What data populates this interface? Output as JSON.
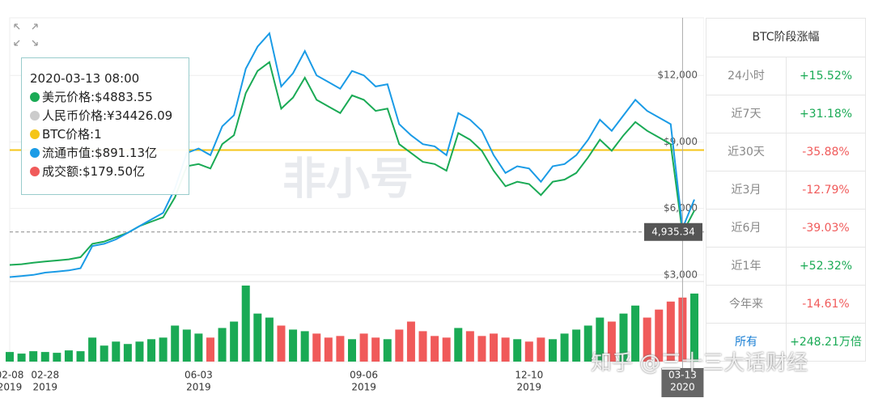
{
  "chart_data": {
    "type": "line",
    "categories": [
      "02-08",
      null,
      null,
      "02-28",
      null,
      null,
      null,
      null,
      null,
      null,
      null,
      null,
      null,
      null,
      null,
      null,
      "06-03",
      null,
      null,
      null,
      null,
      null,
      null,
      null,
      null,
      null,
      null,
      null,
      null,
      null,
      "09-06",
      null,
      null,
      null,
      null,
      null,
      null,
      null,
      null,
      null,
      null,
      null,
      null,
      null,
      "12-10",
      null,
      null,
      null,
      null,
      null,
      null,
      null,
      null,
      null,
      null,
      null,
      null,
      "03-13",
      null
    ],
    "category_years": [
      "2019",
      null,
      null,
      "2019",
      null,
      null,
      null,
      null,
      null,
      null,
      null,
      null,
      null,
      null,
      null,
      null,
      "2019",
      null,
      null,
      null,
      null,
      null,
      null,
      null,
      null,
      null,
      null,
      null,
      null,
      null,
      "2019",
      null,
      null,
      null,
      null,
      null,
      null,
      null,
      null,
      null,
      null,
      null,
      null,
      null,
      "2019",
      null,
      null,
      null,
      null,
      null,
      null,
      null,
      null,
      null,
      null,
      null,
      null,
      "2020",
      null
    ],
    "series": [
      {
        "name": "美元价格",
        "color": "#1aaa55",
        "values": [
          3450,
          3480,
          3550,
          3600,
          3650,
          3700,
          3800,
          4400,
          4500,
          4700,
          4900,
          5200,
          5400,
          5600,
          6500,
          7900,
          8000,
          7800,
          8900,
          9300,
          11200,
          12200,
          12600,
          10500,
          11000,
          11900,
          10900,
          10600,
          10300,
          11100,
          10900,
          10400,
          10500,
          8900,
          8500,
          8100,
          8000,
          7700,
          9400,
          9100,
          8600,
          7700,
          7000,
          7200,
          7100,
          6600,
          7200,
          7300,
          7600,
          8300,
          9100,
          8600,
          9300,
          9900,
          9500,
          9200,
          8900,
          4883.55,
          5900
        ]
      },
      {
        "name": "流通市值",
        "color": "#1a9be6",
        "values": [
          2900,
          2950,
          3000,
          3100,
          3150,
          3200,
          3300,
          4300,
          4400,
          4600,
          4900,
          5200,
          5500,
          5800,
          6900,
          8500,
          8700,
          8400,
          9700,
          10200,
          12300,
          13300,
          13900,
          11500,
          12100,
          13100,
          12000,
          11700,
          11400,
          12200,
          12000,
          11500,
          11600,
          9800,
          9300,
          8900,
          8800,
          8400,
          10300,
          10000,
          9500,
          8400,
          7600,
          7900,
          7800,
          7200,
          7900,
          8000,
          8400,
          9100,
          10000,
          9500,
          10200,
          10900,
          10400,
          10100,
          9800,
          5100,
          6400
        ]
      }
    ],
    "volume": [
      12,
      10,
      13,
      12,
      11,
      14,
      13,
      30,
      20,
      25,
      22,
      25,
      28,
      30,
      45,
      40,
      35,
      30,
      42,
      50,
      95,
      60,
      55,
      45,
      40,
      38,
      35,
      30,
      32,
      28,
      35,
      30,
      28,
      40,
      50,
      38,
      32,
      30,
      42,
      38,
      32,
      35,
      30,
      28,
      25,
      30,
      28,
      35,
      40,
      45,
      55,
      50,
      60,
      70,
      55,
      65,
      75,
      80,
      85
    ],
    "up_color": "#1aaa55",
    "down_color": "#f05a5a",
    "btc_price_line": {
      "value": 8630,
      "color": "#f5c518"
    },
    "crosshair_y": {
      "value": 4935.34,
      "label": "4,935.34"
    },
    "ylim": [
      2700,
      14600
    ],
    "yticks": [
      {
        "value": 3000,
        "label": "$3,000"
      },
      {
        "value": 6000,
        "label": "$6,000"
      },
      {
        "value": 9000,
        "label": "$9,000"
      },
      {
        "value": 12000,
        "label": "$12,000"
      }
    ],
    "grid": true,
    "tooltip": {
      "date": "2020-03-13 08:00",
      "items": [
        {
          "text": "美元价格:$4883.55",
          "color": "#1aaa55"
        },
        {
          "text": "人民币价格:¥34426.09",
          "color": "#cccccc"
        },
        {
          "text": "BTC价格:1",
          "color": "#f5c518"
        },
        {
          "text": "流通市值:$891.13亿",
          "color": "#1a9be6"
        },
        {
          "text": "成交额:$179.50亿",
          "color": "#f05a5a"
        }
      ]
    },
    "watermark": "非小号"
  },
  "table": {
    "title": "BTC阶段涨幅",
    "rows": [
      [
        "24小时",
        "+15.52%"
      ],
      [
        "近7天",
        "+31.18%"
      ],
      [
        "近30天",
        "-35.88%"
      ],
      [
        "近3月",
        "-12.79%"
      ],
      [
        "近6月",
        "-39.03%"
      ],
      [
        "近1年",
        "+52.32%"
      ],
      [
        "今年来",
        "-14.61%"
      ],
      [
        "所有",
        "+248.21万倍"
      ]
    ]
  },
  "credit": "知乎 @三十三大话财经"
}
